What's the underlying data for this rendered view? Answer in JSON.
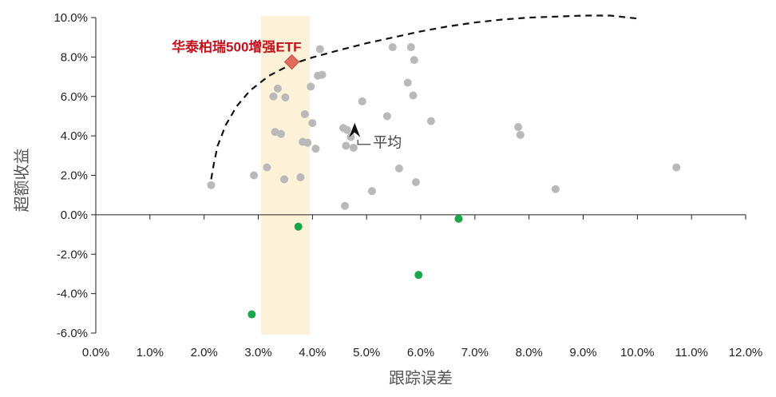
{
  "chart_data": {
    "type": "scatter",
    "xlabel": "跟踪误差",
    "ylabel": "超额收益",
    "xlim": [
      0,
      12
    ],
    "ylim": [
      -6,
      10
    ],
    "x_ticks": [
      0,
      1,
      2,
      3,
      4,
      5,
      6,
      7,
      8,
      9,
      10,
      11,
      12
    ],
    "y_ticks": [
      -6,
      -4,
      -2,
      0,
      2,
      4,
      6,
      8,
      10
    ],
    "x_tick_labels": [
      "0.0%",
      "1.0%",
      "2.0%",
      "3.0%",
      "4.0%",
      "5.0%",
      "6.0%",
      "7.0%",
      "8.0%",
      "9.0%",
      "10.0%",
      "11.0%",
      "12.0%"
    ],
    "y_tick_labels": [
      "-6.0%",
      "-4.0%",
      "-2.0%",
      "0.0%",
      "2.0%",
      "4.0%",
      "6.0%",
      "8.0%",
      "10.0%"
    ],
    "highlight_band": {
      "x_range": [
        3.05,
        3.95
      ],
      "color": "#fdf2d8"
    },
    "series": [
      {
        "role": "others",
        "color": "#b9b9b9",
        "points": [
          [
            2.13,
            1.5
          ],
          [
            2.92,
            2.0
          ],
          [
            3.16,
            2.4
          ],
          [
            3.28,
            6.0
          ],
          [
            3.31,
            4.2
          ],
          [
            3.36,
            6.4
          ],
          [
            3.42,
            4.1
          ],
          [
            3.48,
            1.8
          ],
          [
            3.5,
            5.95
          ],
          [
            3.78,
            1.9
          ],
          [
            3.82,
            3.7
          ],
          [
            3.86,
            5.1
          ],
          [
            3.91,
            3.65
          ],
          [
            3.97,
            6.5
          ],
          [
            4.0,
            4.65
          ],
          [
            4.06,
            3.35
          ],
          [
            4.1,
            7.05
          ],
          [
            4.14,
            8.4
          ],
          [
            4.18,
            7.1
          ],
          [
            4.57,
            4.4
          ],
          [
            4.6,
            0.45
          ],
          [
            4.62,
            3.5
          ],
          [
            4.64,
            4.3
          ],
          [
            4.71,
            3.95
          ],
          [
            4.76,
            3.4
          ],
          [
            4.92,
            5.75
          ],
          [
            5.1,
            1.2
          ],
          [
            5.38,
            5.0
          ],
          [
            5.48,
            8.5
          ],
          [
            5.6,
            2.35
          ],
          [
            5.76,
            6.7
          ],
          [
            5.82,
            8.5
          ],
          [
            5.86,
            6.05
          ],
          [
            5.88,
            7.85
          ],
          [
            5.91,
            1.65
          ],
          [
            6.19,
            4.75
          ],
          [
            7.8,
            4.45
          ],
          [
            7.84,
            4.05
          ],
          [
            8.49,
            1.3
          ],
          [
            10.72,
            2.4
          ]
        ]
      },
      {
        "role": "negative",
        "color": "#1aa64a",
        "points": [
          [
            2.88,
            -5.05
          ],
          [
            3.74,
            -0.6
          ],
          [
            5.96,
            -3.05
          ],
          [
            6.7,
            -0.2
          ]
        ]
      }
    ],
    "highlight_point": {
      "label": "华泰柏瑞500增强ETF",
      "x": 3.62,
      "y": 7.75,
      "color": "#e06a5c",
      "label_color": "#c0121c"
    },
    "average_point": {
      "label": "平均",
      "x": 4.78,
      "y": 4.3
    },
    "frontier_curve": {
      "style": "dashed",
      "points": [
        [
          2.13,
          1.8
        ],
        [
          2.18,
          2.6
        ],
        [
          2.25,
          3.5
        ],
        [
          2.4,
          4.55
        ],
        [
          2.6,
          5.5
        ],
        [
          2.85,
          6.3
        ],
        [
          3.2,
          7.05
        ],
        [
          3.6,
          7.62
        ],
        [
          4.0,
          7.98
        ],
        [
          4.5,
          8.35
        ],
        [
          5.0,
          8.7
        ],
        [
          5.5,
          9.0
        ],
        [
          6.0,
          9.3
        ],
        [
          6.5,
          9.55
        ],
        [
          7.0,
          9.75
        ],
        [
          7.5,
          9.9
        ],
        [
          8.0,
          10.0
        ],
        [
          8.5,
          10.05
        ],
        [
          9.0,
          10.1
        ],
        [
          9.5,
          10.1
        ],
        [
          10.0,
          9.95
        ]
      ]
    }
  }
}
